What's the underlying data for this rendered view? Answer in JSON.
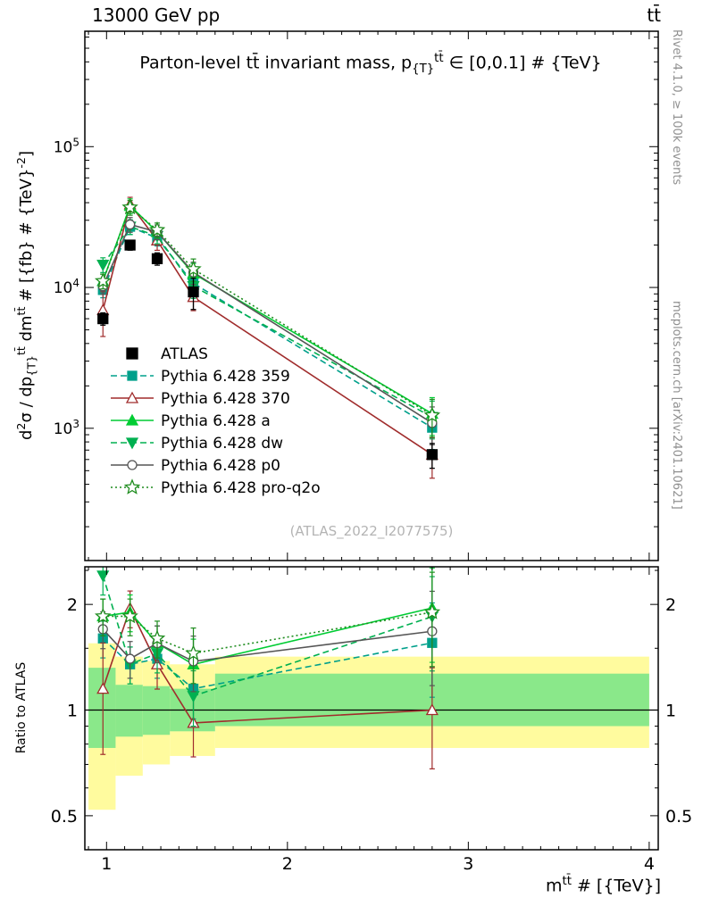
{
  "header": {
    "left": "13000 GeV pp",
    "right": "tt̄"
  },
  "side_notes": {
    "top_right": "Rivet 4.1.0, ≥ 100k events",
    "bottom_right": "mcplots.cern.ch [arXiv:2401.10621]"
  },
  "watermark": "(ATLAS_2022_I2077575)",
  "chart_data": {
    "type": "line",
    "title_parts": [
      {
        "t": "Parton-level tt̄ invariant mass, p"
      },
      {
        "t": "{T}",
        "s": "sub"
      },
      {
        "t": "tt̄",
        "s": "sup"
      },
      {
        "t": " ∈ [0,0.1] # {TeV}"
      }
    ],
    "ylabel_parts": [
      {
        "t": "d"
      },
      {
        "t": "2",
        "s": "sup"
      },
      {
        "t": "σ / dp"
      },
      {
        "t": "{T}",
        "s": "sub"
      },
      {
        "t": "tt̄",
        "s": "sup"
      },
      {
        "t": " dm"
      },
      {
        "t": "tt̄",
        "s": "sup"
      },
      {
        "t": " # [{fb} # {TeV}"
      },
      {
        "t": "-2",
        "s": "sup"
      },
      {
        "t": "]"
      }
    ],
    "xlabel_parts": [
      {
        "t": "m"
      },
      {
        "t": "tt̄",
        "s": "sup"
      },
      {
        "t": " # [{TeV}]"
      }
    ],
    "ratio_ylabel": "Ratio to ATLAS",
    "xlim": [
      0.88,
      4.05
    ],
    "x_ticks": [
      1,
      2,
      3,
      4
    ],
    "top_ylim": [
      115,
      660000
    ],
    "top_y_ticks": [
      1000,
      10000,
      100000
    ],
    "ratio_ylim": [
      0.4,
      2.56
    ],
    "ratio_y_ticks": [
      0.5,
      1,
      2
    ],
    "ratio_y_minor": [
      0.6,
      0.7,
      0.8,
      0.9,
      1.5,
      2.5
    ],
    "legend_position": "middle-left",
    "grid": false,
    "x": [
      0.98,
      1.13,
      1.28,
      1.48,
      2.8
    ],
    "atlas": {
      "label": "ATLAS",
      "color": "#000000",
      "marker": "square-filled",
      "values": [
        6000,
        20000,
        16000,
        9300,
        650
      ],
      "err_frac": [
        0.1,
        0.08,
        0.1,
        0.25,
        0.2
      ]
    },
    "mc_err_frac": [
      0.12,
      0.12,
      0.12,
      0.18,
      0.3
    ],
    "series": [
      {
        "label": "Pythia 6.428 359",
        "color": "#00a08b",
        "dash": "dashed",
        "marker": "square-filled",
        "values": [
          9600,
          27000,
          22400,
          10700,
          1010
        ]
      },
      {
        "label": "Pythia 6.428 370",
        "color": "#a02c2c",
        "dash": "solid",
        "marker": "triangle-open",
        "values": [
          6900,
          39000,
          21600,
          8550,
          650
        ],
        "err_frac": [
          0.35,
          0.12,
          0.15,
          0.2,
          0.32
        ]
      },
      {
        "label": "Pythia 6.428 a",
        "color": "#00cc33",
        "dash": "solid",
        "marker": "triangle-filled",
        "values": [
          11100,
          38000,
          24800,
          12550,
          1270
        ]
      },
      {
        "label": "Pythia 6.428 dw",
        "color": "#00b050",
        "dash": "dashed",
        "marker": "triangle-down-filled",
        "values": [
          14500,
          27000,
          23200,
          10200,
          1200
        ]
      },
      {
        "label": "Pythia 6.428 p0",
        "color": "#555555",
        "dash": "solid",
        "marker": "circle-open",
        "values": [
          10200,
          28000,
          24800,
          12800,
          1090
        ]
      },
      {
        "label": "Pythia 6.428 pro-q2o",
        "color": "#1e8c1e",
        "dash": "dotted",
        "marker": "star-open",
        "values": [
          11100,
          37000,
          25600,
          13500,
          1235
        ]
      }
    ],
    "bands": {
      "edges": [
        0.9,
        1.05,
        1.2,
        1.35,
        1.6,
        4.0
      ],
      "yellow": [
        [
          0.52,
          1.55
        ],
        [
          0.65,
          1.42
        ],
        [
          0.7,
          1.38
        ],
        [
          0.74,
          1.35
        ],
        [
          0.78,
          1.42
        ]
      ],
      "green": [
        [
          0.78,
          1.32
        ],
        [
          0.84,
          1.18
        ],
        [
          0.85,
          1.17
        ],
        [
          0.87,
          1.15
        ],
        [
          0.9,
          1.27
        ]
      ],
      "yellow_color": "#fffb9e",
      "green_color": "#8ae88a"
    }
  }
}
